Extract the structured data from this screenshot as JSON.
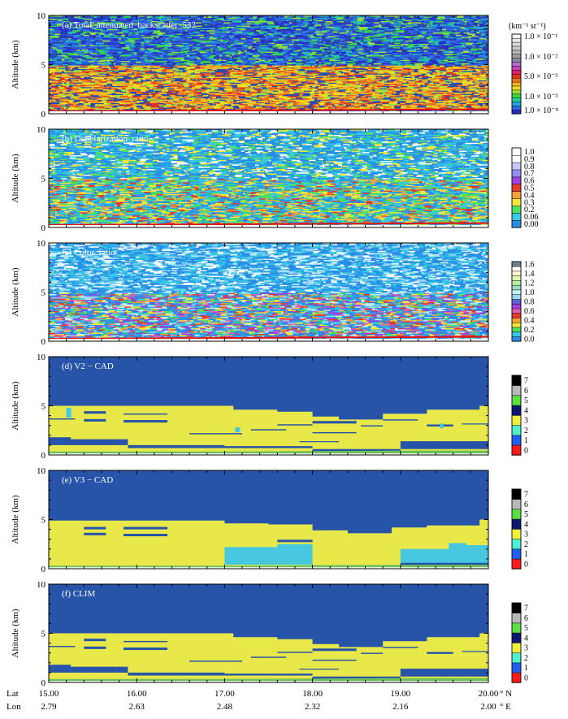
{
  "chart_data": {
    "type": "heatmap",
    "ylabel": "Altitude (km)",
    "ylim": [
      0,
      10
    ],
    "yticks": [
      "0",
      "5",
      "10"
    ],
    "x_rows": [
      {
        "label": "Lat",
        "values": [
          "15.00",
          "16.00",
          "17.00",
          "18.00",
          "19.00",
          "20.00"
        ],
        "unit": "° N"
      },
      {
        "label": "Lon",
        "values": [
          "2.79",
          "2.63",
          "2.48",
          "2.32",
          "2.16",
          "2.00"
        ],
        "unit": "° E"
      }
    ],
    "panels": [
      {
        "id": "a",
        "kind": "noise",
        "label": "(a)   Total_attenuated_backscatter_532",
        "colorbar_title": "(km⁻¹ sr⁻¹)",
        "colorbar_colors": [
          "#2a2cc8",
          "#2f66e8",
          "#1fa8d8",
          "#28c8a0",
          "#38d840",
          "#9ce040",
          "#f0e020",
          "#f8b020",
          "#f07020",
          "#e83020",
          "#e01e6e",
          "#d040b8",
          "#b070d8",
          "#8888a8",
          "#a0a0a0",
          "#b8b8b8",
          "#cccccc",
          "#dcdcdc",
          "#eaeaea",
          "#f6f6f6"
        ],
        "colorbar_labels": [
          "1.0 × 10⁻¹",
          "1.0 × 10⁻²",
          "5.0 × 10⁻³",
          "1.0 × 10⁻³",
          "1.0 × 10⁻⁴"
        ]
      },
      {
        "id": "b",
        "kind": "noise",
        "label": "(b)   Depolarization_ratio",
        "colorbar_colors": [
          "#2a8ce6",
          "#39c8e6",
          "#4ee060",
          "#f4e73a",
          "#f6a23a",
          "#e83a2a",
          "#a040e0",
          "#9090f0",
          "#c8c8f8",
          "#ffffff",
          "#ffffff"
        ],
        "colorbar_labels": [
          "0.00",
          "0.06",
          "0.2",
          "0.3",
          "0.4",
          "0.5",
          "0.6",
          "0.7",
          "0.8",
          "0.9",
          "1.0"
        ]
      },
      {
        "id": "c",
        "kind": "noise",
        "label": "(c)   Color_ratio",
        "colorbar_colors": [
          "#2a8ce6",
          "#39c8e6",
          "#4ee060",
          "#f4e73a",
          "#f6a23a",
          "#e83a2a",
          "#e060b0",
          "#a040e0",
          "#6060e0",
          "#9cd8f0",
          "#c8f0f8",
          "#9ce0c0",
          "#b8f0a0",
          "#e0f8b0",
          "#fff8d0",
          "#ffffff",
          "#708090"
        ],
        "colorbar_labels": [
          "0.0",
          "0.2",
          "0.4",
          "0.6",
          "0.8",
          "1.0",
          "1.2",
          "1.4",
          "1.6"
        ]
      },
      {
        "id": "d",
        "kind": "cad",
        "label": "(d)   V2 − CAD",
        "colorbar_colors": [
          "#ff1a1a",
          "#2060f0",
          "#4ff0d0",
          "#f0f03c",
          "#0a1870",
          "#5ae040",
          "#b8b8b8",
          "#000000"
        ],
        "colorbar_labels": [
          "0",
          "1",
          "2",
          "3",
          "4",
          "5",
          "6",
          "7"
        ],
        "top": [
          [
            15.0,
            5.0
          ],
          [
            16.3,
            5.0
          ],
          [
            16.6,
            5.0
          ],
          [
            17.1,
            4.6
          ],
          [
            17.6,
            4.4
          ],
          [
            18.0,
            3.9
          ],
          [
            18.3,
            3.6
          ],
          [
            18.8,
            4.2
          ],
          [
            19.3,
            4.6
          ],
          [
            19.9,
            5.0
          ],
          [
            20.0,
            5.0
          ]
        ],
        "surface": [
          [
            15.0,
            0.35
          ],
          [
            17.0,
            0.35
          ],
          [
            18.0,
            0.4
          ],
          [
            19.0,
            0.45
          ],
          [
            20.0,
            0.45
          ]
        ]
      },
      {
        "id": "e",
        "kind": "cad",
        "label": "(e)   V3 − CAD",
        "colorbar_colors": [
          "#ff1a1a",
          "#2060f0",
          "#4ff0d0",
          "#f0f03c",
          "#0a1870",
          "#5ae040",
          "#b8b8b8",
          "#000000"
        ],
        "colorbar_labels": [
          "0",
          "1",
          "2",
          "3",
          "4",
          "5",
          "6",
          "7"
        ],
        "top": [
          [
            15.0,
            4.9
          ],
          [
            16.3,
            4.9
          ],
          [
            16.6,
            4.9
          ],
          [
            17.0,
            4.6
          ],
          [
            17.5,
            4.5
          ],
          [
            18.0,
            3.9
          ],
          [
            18.4,
            3.6
          ],
          [
            18.9,
            4.2
          ],
          [
            19.3,
            4.4
          ],
          [
            19.9,
            5.0
          ],
          [
            20.0,
            5.0
          ]
        ],
        "surface": [
          [
            15.0,
            0.3
          ],
          [
            17.0,
            0.3
          ],
          [
            18.0,
            0.35
          ],
          [
            19.0,
            0.4
          ],
          [
            20.0,
            0.4
          ]
        ]
      },
      {
        "id": "f",
        "kind": "cad",
        "label": "(f)   CLIM",
        "colorbar_colors": [
          "#ff1a1a",
          "#2060f0",
          "#4ff0d0",
          "#f0f03c",
          "#0a1870",
          "#5ae040",
          "#b8b8b8",
          "#000000"
        ],
        "colorbar_labels": [
          "0",
          "1",
          "2",
          "3",
          "4",
          "5",
          "6",
          "7"
        ],
        "top": [
          [
            15.0,
            5.0
          ],
          [
            16.3,
            5.0
          ],
          [
            16.6,
            5.0
          ],
          [
            17.1,
            4.6
          ],
          [
            17.6,
            4.4
          ],
          [
            18.0,
            3.9
          ],
          [
            18.3,
            3.6
          ],
          [
            18.8,
            4.2
          ],
          [
            19.3,
            4.6
          ],
          [
            19.9,
            5.0
          ],
          [
            20.0,
            5.0
          ]
        ],
        "surface": [
          [
            15.0,
            0.35
          ],
          [
            17.0,
            0.35
          ],
          [
            18.0,
            0.4
          ],
          [
            19.0,
            0.45
          ],
          [
            20.0,
            0.45
          ]
        ]
      }
    ]
  }
}
